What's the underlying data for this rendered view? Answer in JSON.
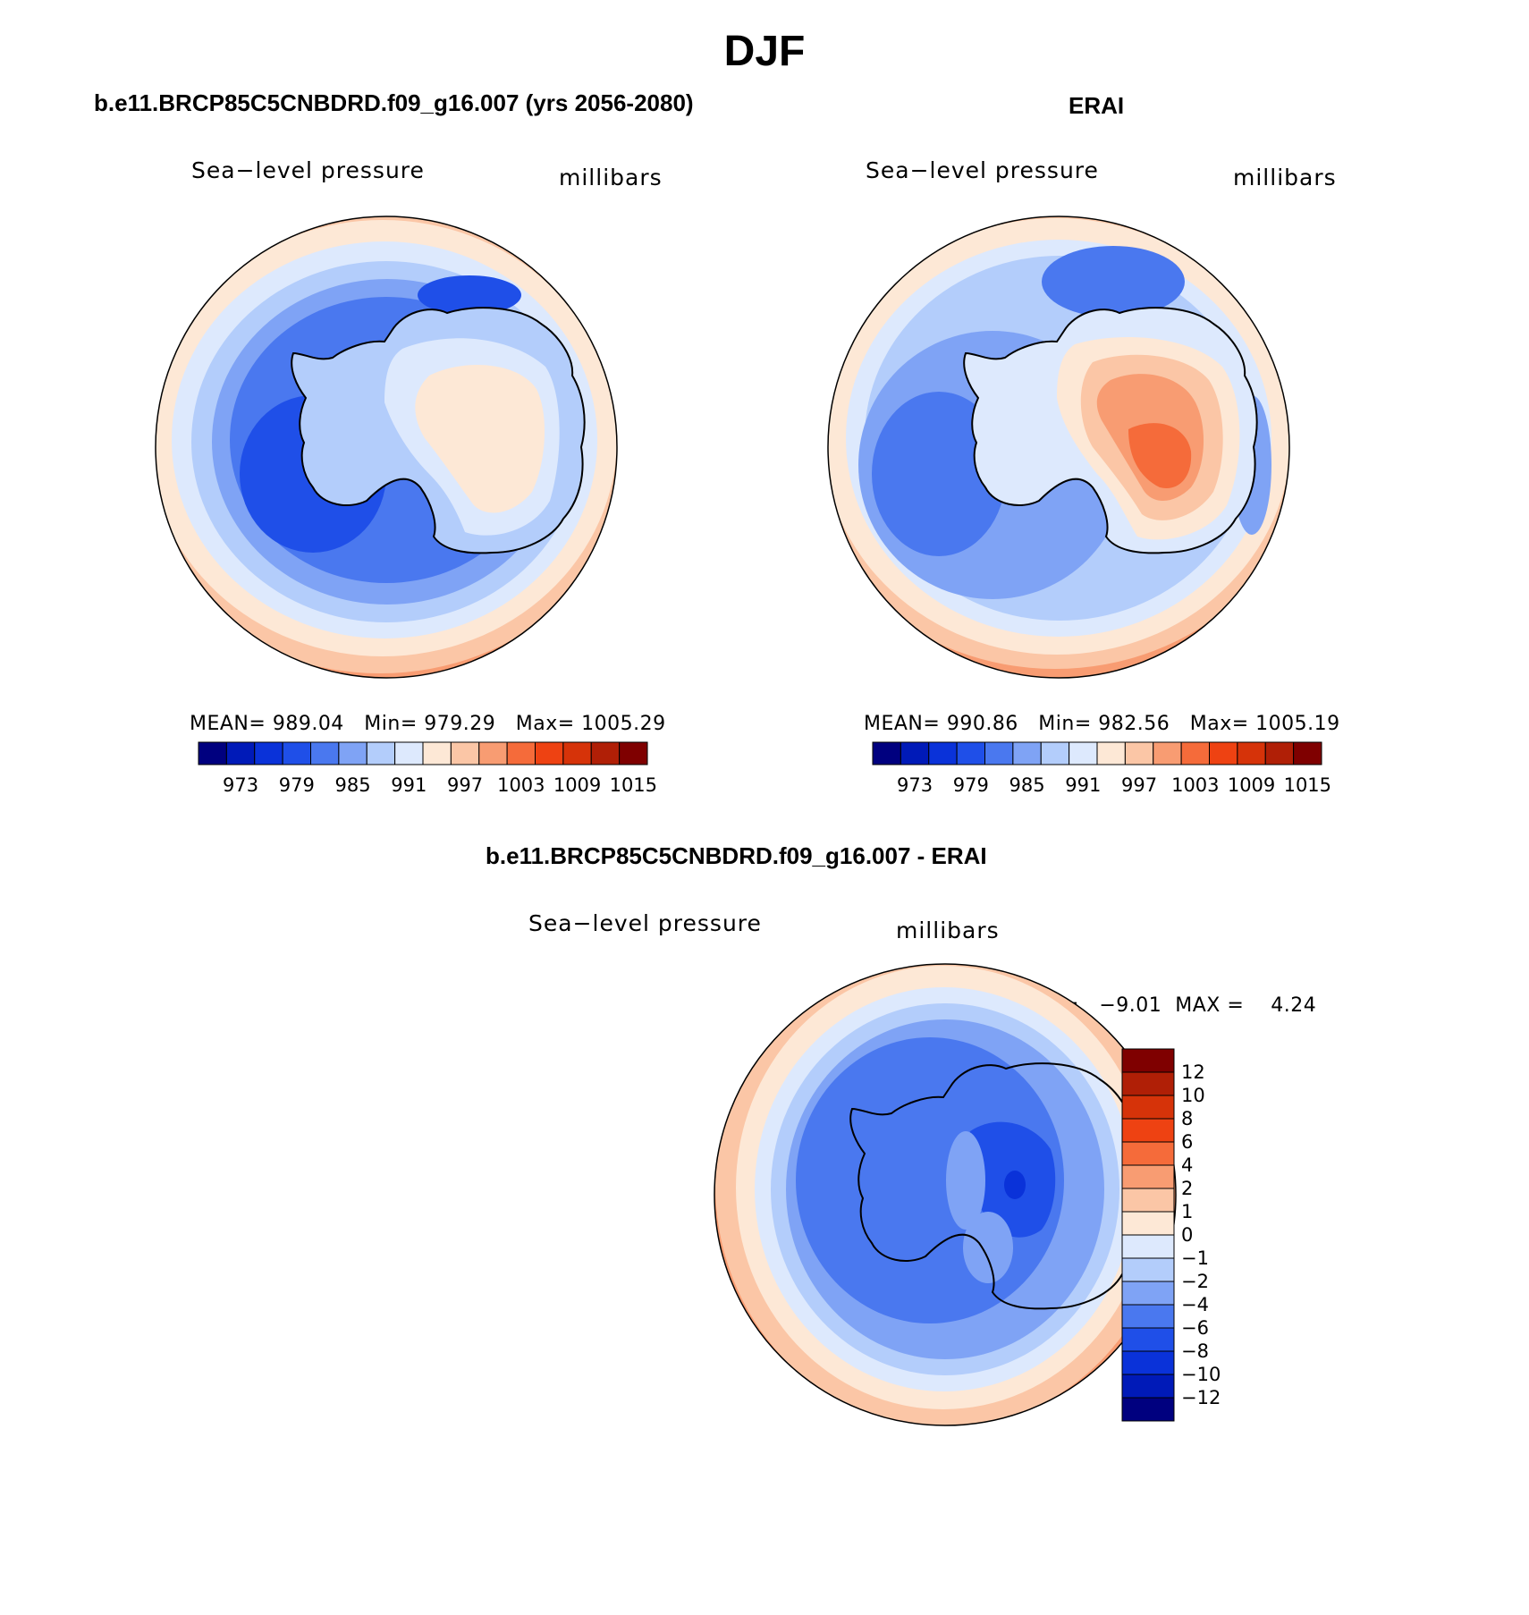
{
  "title": "DJF",
  "panels": {
    "model": {
      "heading": "b.e11.BRCP85C5CNBDRD.f09_g16.007 (yrs 2056-2080)",
      "variable": "Sea−level pressure",
      "units": "millibars",
      "stats": {
        "mean_label": "MEAN=",
        "mean": "989.04",
        "min_label": "Min=",
        "min": "979.29",
        "max_label": "Max=",
        "max": "1005.29"
      },
      "colorbar_ticks": [
        "973",
        "979",
        "985",
        "991",
        "997",
        "1003",
        "1009",
        "1015"
      ],
      "colorbar_colors": [
        "#00007f",
        "#001ab8",
        "#0a32d9",
        "#1f4fe8",
        "#4a78ef",
        "#7fa3f5",
        "#b3cdfb",
        "#dde9fd",
        "#fde8d6",
        "#fbc6a6",
        "#f89c72",
        "#f56b3a",
        "#ee4212",
        "#d63309",
        "#b01f06",
        "#7f0000"
      ]
    },
    "obs": {
      "heading": "ERAI",
      "variable": "Sea−level pressure",
      "units": "millibars",
      "stats": {
        "mean_label": "MEAN=",
        "mean": "990.86",
        "min_label": "Min=",
        "min": "982.56",
        "max_label": "Max=",
        "max": "1005.19"
      },
      "colorbar_ticks": [
        "973",
        "979",
        "985",
        "991",
        "997",
        "1003",
        "1009",
        "1015"
      ],
      "colorbar_colors": [
        "#00007f",
        "#001ab8",
        "#0a32d9",
        "#1f4fe8",
        "#4a78ef",
        "#7fa3f5",
        "#b3cdfb",
        "#dde9fd",
        "#fde8d6",
        "#fbc6a6",
        "#f89c72",
        "#f56b3a",
        "#ee4212",
        "#d63309",
        "#b01f06",
        "#7f0000"
      ]
    },
    "diff": {
      "heading": "b.e11.BRCP85C5CNBDRD.f09_g16.007 - ERAI",
      "variable": "Sea−level pressure",
      "units": "millibars",
      "stats": {
        "min_label": "MIN =",
        "min": "−9.01",
        "max_label": "MAX =",
        "max": "4.24"
      },
      "colorbar_ticks": [
        "12",
        "10",
        "8",
        "6",
        "4",
        "2",
        "1",
        "0",
        "−1",
        "−2",
        "−4",
        "−6",
        "−8",
        "−10",
        "−12"
      ],
      "colorbar_colors": [
        "#7f0000",
        "#b01f06",
        "#d63309",
        "#ee4212",
        "#f56b3a",
        "#f89c72",
        "#fbc6a6",
        "#fde8d6",
        "#dde9fd",
        "#b3cdfb",
        "#7fa3f5",
        "#4a78ef",
        "#1f4fe8",
        "#0a32d9",
        "#001ab8",
        "#00007f"
      ]
    }
  }
}
